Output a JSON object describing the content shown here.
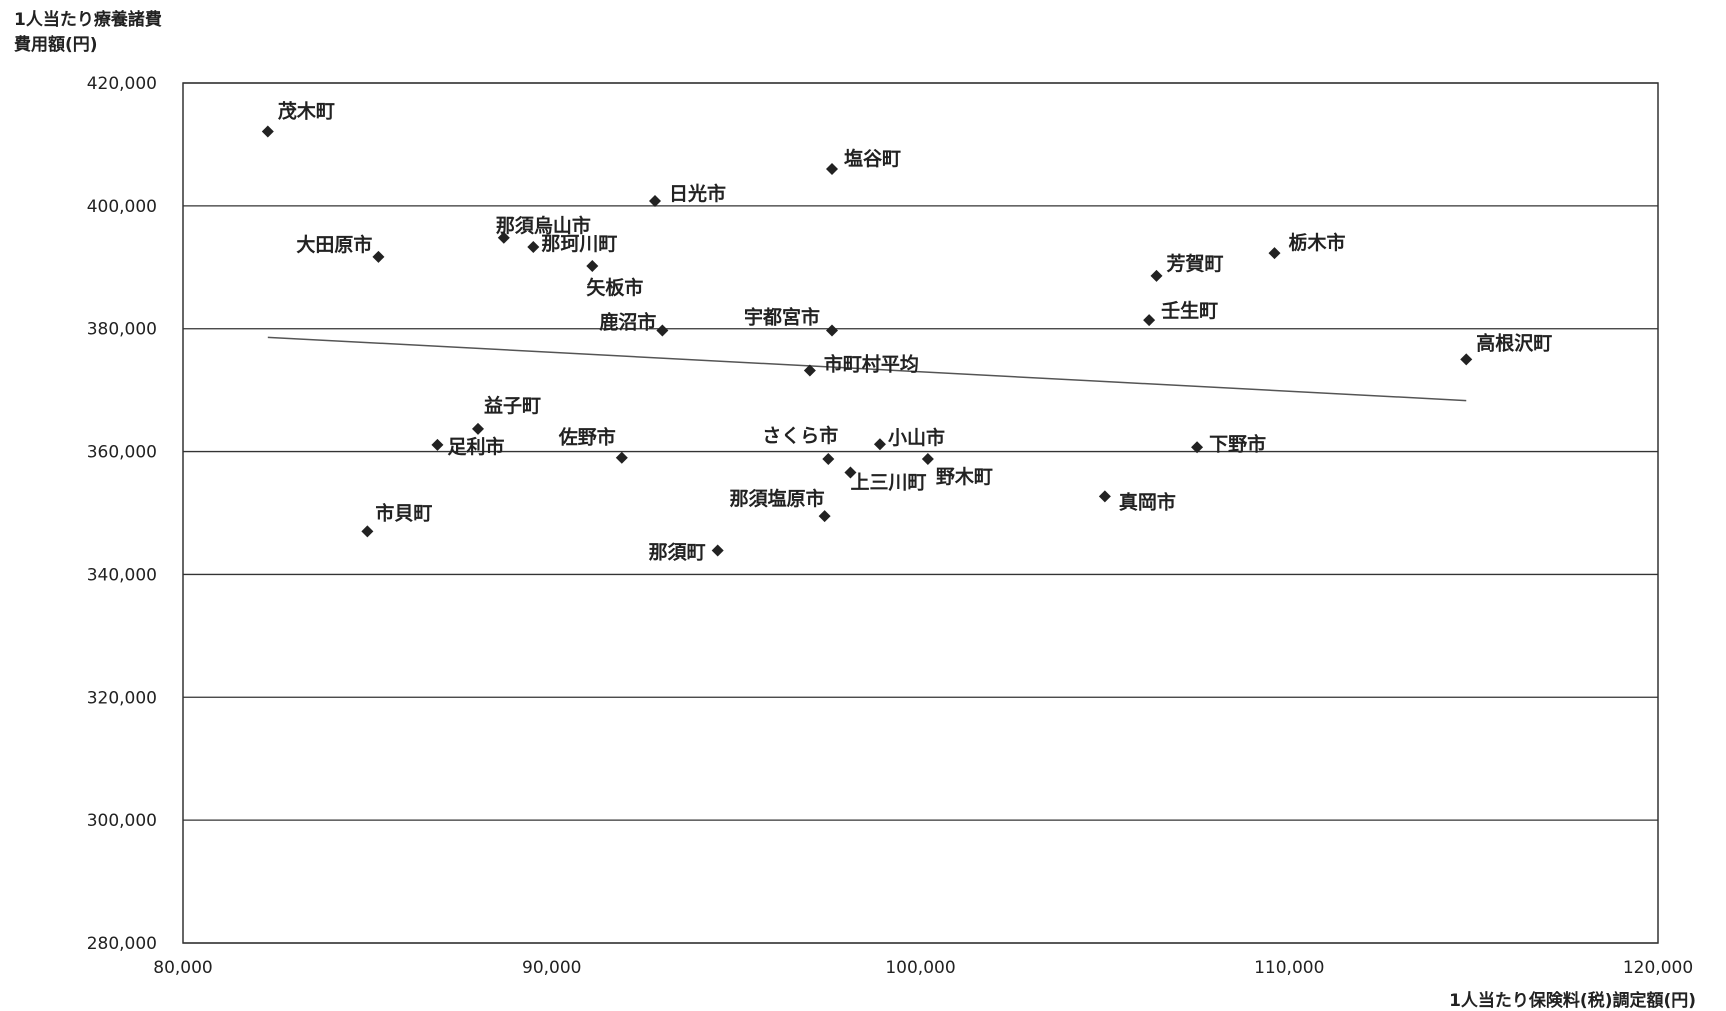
{
  "chart_data": {
    "type": "scatter",
    "ylabel": [
      "1人当たり療養諸費",
      "費用額(円)"
    ],
    "xlabel": "1人当たり保険料(税)調定額(円)",
    "xlim": [
      80000,
      120000
    ],
    "ylim": [
      280000,
      420000
    ],
    "x_ticks": [
      "80,000",
      "90,000",
      "100,000",
      "110,000",
      "120,000"
    ],
    "y_ticks": [
      "420,000",
      "400,000",
      "380,000",
      "360,000",
      "340,000",
      "320,000",
      "300,000",
      "280,000"
    ],
    "grid": "horizontal",
    "trendline": {
      "x1": 82300,
      "y1": 378600,
      "x2": 114800,
      "y2": 368300
    },
    "points": [
      {
        "label": "茂木町",
        "x": 82300,
        "y": 412100
      },
      {
        "label": "塩谷町",
        "x": 97600,
        "y": 406000
      },
      {
        "label": "日光市",
        "x": 92800,
        "y": 400800
      },
      {
        "label": "大田原市",
        "x": 85300,
        "y": 391700
      },
      {
        "label": "那須烏山市",
        "x": 88700,
        "y": 394800
      },
      {
        "label": "那珂川町",
        "x": 89500,
        "y": 393300
      },
      {
        "label": "矢板市",
        "x": 91100,
        "y": 390200
      },
      {
        "label": "芳賀町",
        "x": 106400,
        "y": 388600
      },
      {
        "label": "栃木市",
        "x": 109600,
        "y": 392300
      },
      {
        "label": "壬生町",
        "x": 106200,
        "y": 381400
      },
      {
        "label": "鹿沼市",
        "x": 93000,
        "y": 379700
      },
      {
        "label": "宇都宮市",
        "x": 97600,
        "y": 379700
      },
      {
        "label": "高根沢町",
        "x": 114800,
        "y": 375000
      },
      {
        "label": "市町村平均",
        "x": 97000,
        "y": 373200
      },
      {
        "label": "益子町",
        "x": 88000,
        "y": 363700
      },
      {
        "label": "足利市",
        "x": 86900,
        "y": 361100
      },
      {
        "label": "佐野市",
        "x": 91900,
        "y": 359000
      },
      {
        "label": "さくら市",
        "x": 97500,
        "y": 358800
      },
      {
        "label": "小山市",
        "x": 98900,
        "y": 361200
      },
      {
        "label": "下野市",
        "x": 107500,
        "y": 360700
      },
      {
        "label": "上三川町",
        "x": 98100,
        "y": 356600
      },
      {
        "label": "野木町",
        "x": 100200,
        "y": 358800
      },
      {
        "label": "那須塩原市",
        "x": 97400,
        "y": 349500
      },
      {
        "label": "真岡市",
        "x": 105000,
        "y": 352700
      },
      {
        "label": "市貝町",
        "x": 85000,
        "y": 347000
      },
      {
        "label": "那須町",
        "x": 94500,
        "y": 343900
      }
    ]
  }
}
